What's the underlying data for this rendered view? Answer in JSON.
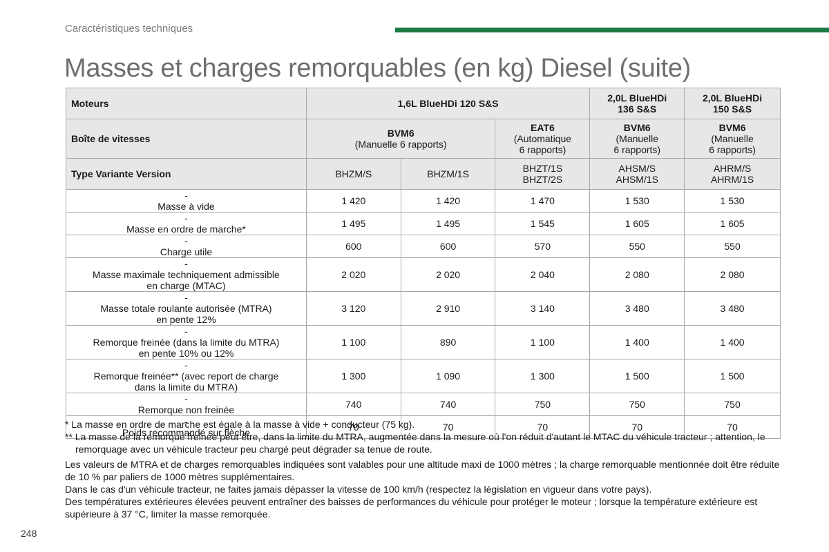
{
  "header": {
    "section": "Caractéristiques techniques",
    "title": "Masses et charges remorquables (en kg) Diesel (suite)"
  },
  "table": {
    "engines_label": "Moteurs",
    "engine_1": "1,6L BlueHDi 120 S&S",
    "engine_2_line1": "2,0L BlueHDi",
    "engine_2_line2": "136 S&S",
    "engine_3_line1": "2,0L BlueHDi",
    "engine_3_line2": "150 S&S",
    "gearbox_label": "Boîte de vitesses",
    "gb1_name": "BVM6",
    "gb1_desc": "(Manuelle 6 rapports)",
    "gb2_name": "EAT6",
    "gb2_desc1": "(Automatique",
    "gb2_desc2": "6 rapports)",
    "gb3_name": "BVM6",
    "gb3_desc1": "(Manuelle",
    "gb3_desc2": "6 rapports)",
    "gb4_name": "BVM6",
    "gb4_desc1": "(Manuelle",
    "gb4_desc2": "6 rapports)",
    "type_label": "Type Variante Version",
    "t1": "BHZM/S",
    "t2": "BHZM/1S",
    "t3_1": "BHZT/1S",
    "t3_2": "BHZT/2S",
    "t4_1": "AHSM/S",
    "t4_2": "AHSM/1S",
    "t5_1": "AHRM/S",
    "t5_2": "AHRM/1S",
    "dash": "-",
    "rows": [
      {
        "l1": "Masse à vide",
        "l2": "",
        "v": [
          "1 420",
          "1 420",
          "1 470",
          "1 530",
          "1 530"
        ]
      },
      {
        "l1": "Masse en ordre de marche*",
        "l2": "",
        "v": [
          "1 495",
          "1 495",
          "1 545",
          "1 605",
          "1 605"
        ]
      },
      {
        "l1": "Charge utile",
        "l2": "",
        "v": [
          "600",
          "600",
          "570",
          "550",
          "550"
        ]
      },
      {
        "l1": "Masse maximale techniquement admissible",
        "l2": "en charge (MTAC)",
        "v": [
          "2 020",
          "2 020",
          "2 040",
          "2 080",
          "2 080"
        ]
      },
      {
        "l1": "Masse totale roulante autorisée (MTRA)",
        "l2": "en pente 12%",
        "v": [
          "3 120",
          "2 910",
          "3 140",
          "3 480",
          "3 480"
        ]
      },
      {
        "l1": "Remorque freinée (dans la limite du MTRA)",
        "l2": "en pente 10% ou 12%",
        "v": [
          "1 100",
          "890",
          "1 100",
          "1 400",
          "1 400"
        ]
      },
      {
        "l1": "Remorque freinée** (avec report de charge",
        "l2": "dans la limite du MTRA)",
        "v": [
          "1 300",
          "1 090",
          "1 300",
          "1 500",
          "1 500"
        ]
      },
      {
        "l1": "Remorque non freinée",
        "l2": "",
        "v": [
          "740",
          "740",
          "750",
          "750",
          "750"
        ]
      },
      {
        "l1": "Poids recommandé sur flèche",
        "l2": "",
        "v": [
          "70",
          "70",
          "70",
          "70",
          "70"
        ]
      }
    ]
  },
  "notes": {
    "n1": "* La masse en ordre de marche est égale à la masse à vide + conducteur (75 kg).",
    "n2": "** La masse de la remorque freinée peut être, dans la limite du MTRA, augmentée dans la mesure où l'on réduit d'autant le MTAC du véhicule tracteur ; attention, le remorquage avec un véhicule tracteur peu chargé peut dégrader sa tenue de route.",
    "n3": "Les valeurs de MTRA et de charges remorquables indiquées sont valables pour une altitude maxi de 1000 mètres ; la charge remorquable mentionnée doit être réduite de 10 % par paliers de 1000 mètres supplémentaires.",
    "n4": "Dans le cas d'un véhicule tracteur, ne faites jamais dépasser la vitesse de 100 km/h (respectez la législation en vigueur dans votre pays).",
    "n5": "Des températures extérieures élevées peuvent entraîner des baisses de performances du véhicule pour protéger le moteur ; lorsque la température extérieure est supérieure à 37 °C, limiter la masse remorquée."
  },
  "footer": {
    "page_number": "248"
  },
  "colors": {
    "accent_bar": "#1b7a45",
    "header_bg": "#e7e7e7",
    "title_gray": "#6e6e6e"
  }
}
